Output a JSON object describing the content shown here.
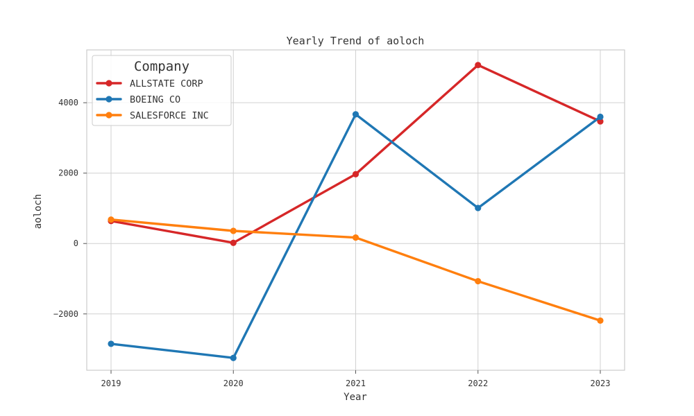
{
  "chart_data": {
    "type": "line",
    "title": "Yearly Trend of aoloch",
    "xlabel": "Year",
    "ylabel": "aoloch",
    "categories": [
      "2019",
      "2020",
      "2021",
      "2022",
      "2023"
    ],
    "yticks": [
      -2000,
      0,
      2000,
      4000
    ],
    "ytick_labels": [
      "−2000",
      "0",
      "2000",
      "4000"
    ],
    "ylim": [
      -3600,
      5500
    ],
    "grid": true,
    "legend": {
      "title": "Company",
      "position": "top-left"
    },
    "series": [
      {
        "name": "ALLSTATE CORP",
        "color": "#d62728",
        "values": [
          640,
          20,
          1970,
          5070,
          3470
        ]
      },
      {
        "name": "BOEING CO",
        "color": "#1f77b4",
        "values": [
          -2850,
          -3250,
          3670,
          1010,
          3600
        ]
      },
      {
        "name": "SALESFORCE INC",
        "color": "#ff7f0e",
        "values": [
          680,
          360,
          170,
          -1070,
          -2190
        ]
      }
    ]
  }
}
